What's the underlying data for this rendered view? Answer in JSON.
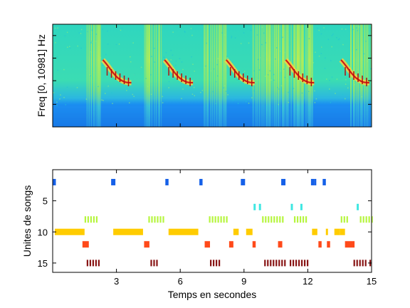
{
  "spectrogram": {
    "ylabel": "Freq [0, 10981] Hz",
    "song_times": [
      3.7,
      6.6,
      9.5,
      12.3,
      14.9
    ]
  },
  "chart_data": {
    "type": "scatter",
    "title": "",
    "xlabel": "Temps en secondes",
    "ylabel": "Unites de songs",
    "xlim": [
      0,
      15
    ],
    "ylim": [
      16.5,
      0
    ],
    "xticks": [
      3,
      6,
      9,
      12,
      15
    ],
    "yticks": [
      5,
      10,
      15
    ],
    "grid": false,
    "series": [
      {
        "unit": 2,
        "color": "#1560e8",
        "segments": [
          [
            0.0,
            0.15
          ],
          [
            2.75,
            2.95
          ],
          [
            5.3,
            5.45
          ],
          [
            6.9,
            7.05
          ],
          [
            8.85,
            9.05
          ],
          [
            10.75,
            10.95
          ],
          [
            12.15,
            12.3
          ],
          [
            12.3,
            12.4
          ],
          [
            12.7,
            12.85
          ]
        ]
      },
      {
        "unit": 6,
        "color": "#3fe7e2",
        "segments": [
          [
            9.45,
            9.55
          ],
          [
            9.7,
            9.8
          ],
          [
            11.2,
            11.3
          ],
          [
            11.65,
            11.75
          ],
          [
            14.3,
            14.4
          ]
        ]
      },
      {
        "unit": 8,
        "color": "#b6f53f",
        "segments": [
          [
            1.5,
            2.15
          ],
          [
            4.5,
            5.25
          ],
          [
            7.35,
            8.2
          ],
          [
            9.85,
            10.9
          ],
          [
            11.35,
            12.0
          ],
          [
            13.55,
            13.95
          ],
          [
            14.45,
            15.0
          ]
        ]
      },
      {
        "unit": 10,
        "color": "#ffcc00",
        "segments": [
          [
            0.1,
            1.5
          ],
          [
            2.85,
            4.25
          ],
          [
            5.45,
            6.85
          ],
          [
            8.5,
            8.75
          ],
          [
            9.1,
            9.4
          ],
          [
            12.2,
            12.45
          ],
          [
            12.85,
            12.95
          ],
          [
            13.25,
            13.5
          ],
          [
            13.5,
            13.75
          ]
        ]
      },
      {
        "unit": 12,
        "color": "#ff4a1a",
        "segments": [
          [
            1.4,
            1.7
          ],
          [
            4.3,
            4.55
          ],
          [
            7.15,
            7.4
          ],
          [
            8.3,
            8.5
          ],
          [
            9.4,
            9.55
          ],
          [
            10.6,
            10.8
          ],
          [
            12.5,
            12.65
          ],
          [
            12.9,
            13.05
          ],
          [
            13.75,
            14.2
          ]
        ]
      },
      {
        "unit": 15,
        "color": "#881414",
        "segments": [
          [
            1.6,
            2.2
          ],
          [
            4.6,
            5.0
          ],
          [
            7.4,
            7.9
          ],
          [
            9.95,
            11.0
          ],
          [
            11.15,
            12.05
          ],
          [
            14.15,
            14.75
          ],
          [
            14.9,
            15.0
          ]
        ]
      }
    ]
  }
}
